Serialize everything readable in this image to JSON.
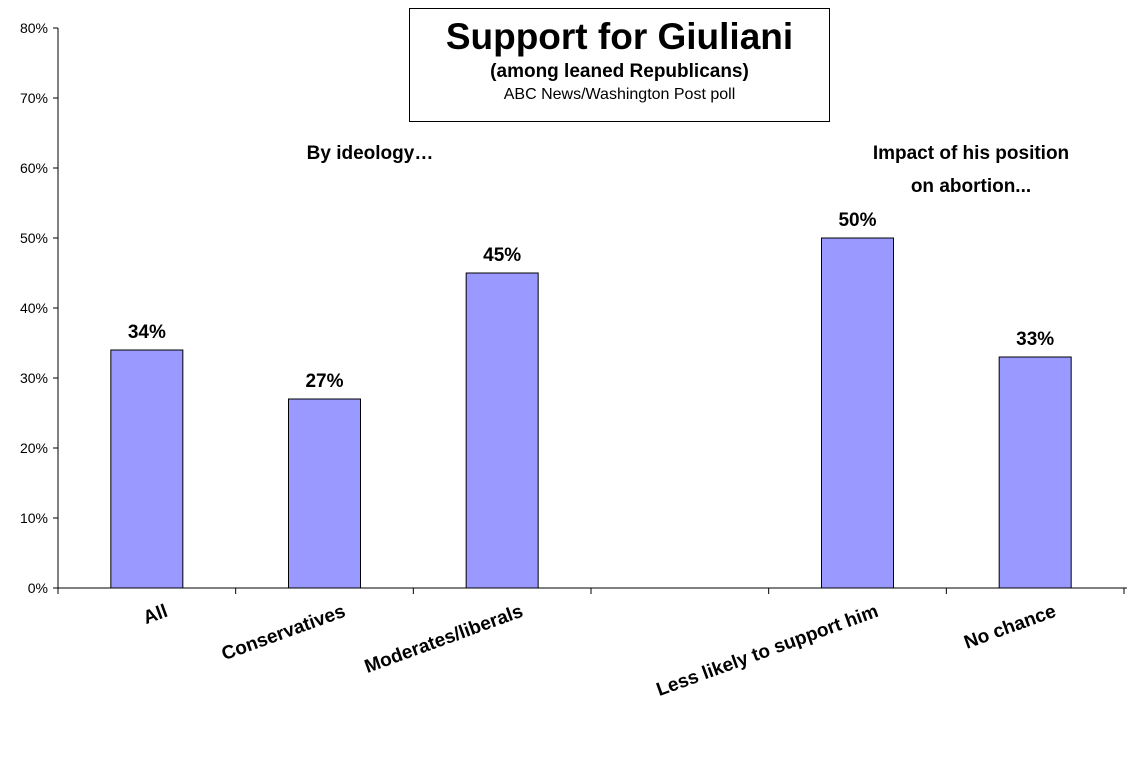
{
  "chart_data": {
    "type": "bar",
    "title": "Support for Giuliani",
    "subtitle": "(among leaned Republicans)",
    "source": "ABC News/Washington Post poll",
    "categories": [
      "All",
      "Conservatives",
      "Moderates/liberals",
      "",
      "Less likely to support him",
      "No chance"
    ],
    "values": [
      34,
      27,
      45,
      null,
      50,
      33
    ],
    "data_labels": [
      "34%",
      "27%",
      "45%",
      "",
      "50%",
      "33%"
    ],
    "ylim": [
      0,
      80
    ],
    "yticks": [
      "0%",
      "10%",
      "20%",
      "30%",
      "40%",
      "50%",
      "60%",
      "70%",
      "80%"
    ],
    "annotations": [
      {
        "text": "By ideology…"
      },
      {
        "text": "Impact of his position"
      },
      {
        "text": "on abortion..."
      }
    ],
    "bar_color": "#9999ff",
    "grid": false,
    "legend": "none"
  }
}
